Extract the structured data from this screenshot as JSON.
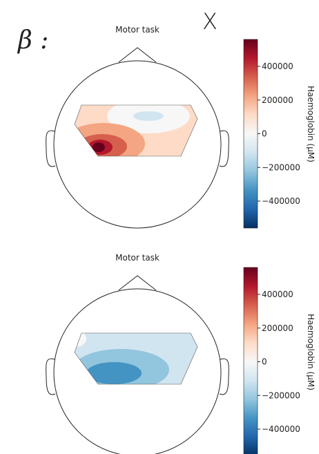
{
  "label_left": "β :",
  "label_top": "X",
  "chart_data": [
    {
      "type": "topomap",
      "title": "Motor task",
      "colorbar_label": "Haemoglobin (μM)",
      "clim": [
        -560000,
        560000
      ],
      "cticks": [
        {
          "value": -400000,
          "label": "−400000"
        },
        {
          "value": -200000,
          "label": "−200000"
        },
        0,
        200000,
        400000
      ],
      "colormap": [
        "#053061",
        "#2166ac",
        "#4393c3",
        "#92c5de",
        "#d1e5f0",
        "#f7f7f7",
        "#fddbc7",
        "#f4a582",
        "#d6604d",
        "#b2182b",
        "#67001f"
      ]
    },
    {
      "type": "topomap",
      "title": "Motor task",
      "colorbar_label": "Haemoglobin (μM)",
      "clim": [
        -560000,
        560000
      ],
      "cticks": [
        {
          "value": -400000,
          "label": "−400000"
        },
        {
          "value": -200000,
          "label": "−200000"
        },
        0,
        200000,
        400000
      ],
      "colormap": [
        "#053061",
        "#2166ac",
        "#4393c3",
        "#92c5de",
        "#d1e5f0",
        "#f7f7f7",
        "#fddbc7",
        "#f4a582",
        "#d6604d",
        "#b2182b",
        "#67001f"
      ]
    }
  ]
}
